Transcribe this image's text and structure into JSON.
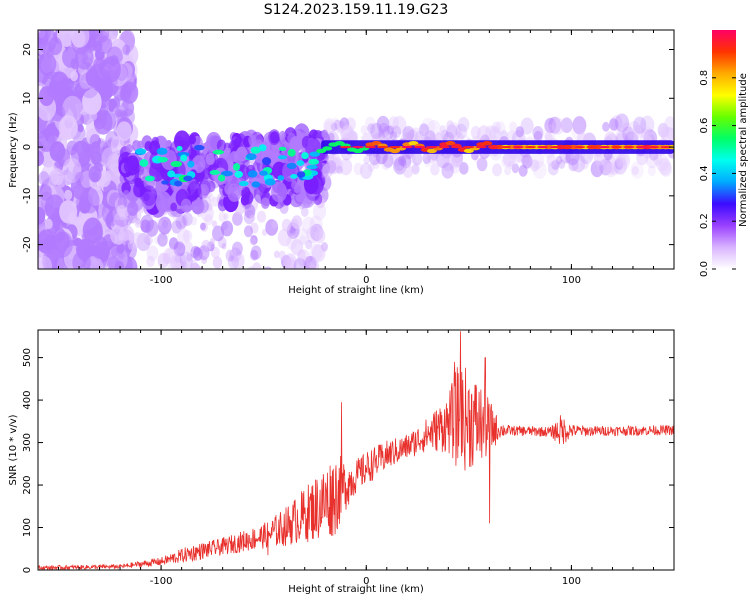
{
  "title": "S124.2023.159.11.19.G23",
  "chart_data": [
    {
      "type": "heatmap",
      "xlabel": "Height of straight line (km)",
      "ylabel": "Frequency (Hz)",
      "xlim": [
        -160,
        150
      ],
      "ylim": [
        -25,
        24
      ],
      "xticks": [
        -100,
        0,
        100
      ],
      "yticks": [
        -20,
        -10,
        0,
        10,
        20
      ],
      "ridge_frequency_hz": 0,
      "colorbar": {
        "label": "Normalized spectral amplitude",
        "range": [
          0.0,
          1.0
        ],
        "ticks": [
          "0.0",
          "0.2",
          "0.4",
          "0.6",
          "0.8"
        ],
        "colors": [
          "#ffffff",
          "#d9b3ff",
          "#9a40ff",
          "#3b0bff",
          "#00aaff",
          "#00ffee",
          "#00ff66",
          "#66ff00",
          "#ffff00",
          "#ffaa00",
          "#ff3300",
          "#ff0066"
        ]
      }
    },
    {
      "type": "line",
      "xlabel": "Height of straight line (km)",
      "ylabel": "SNR (10 * v/v)",
      "xlim": [
        -160,
        150
      ],
      "ylim": [
        0,
        565
      ],
      "xticks": [
        -100,
        0,
        100
      ],
      "yticks": [
        0,
        100,
        200,
        300,
        400,
        500
      ],
      "color": "#e8302c",
      "envelope": {
        "x": [
          -160,
          -120,
          -100,
          -85,
          -70,
          -50,
          -40,
          -30,
          -20,
          -15,
          -10,
          -5,
          0,
          10,
          20,
          30,
          40,
          45,
          50,
          55,
          60,
          65,
          70,
          80,
          90,
          95,
          100,
          110,
          120,
          130,
          140,
          150
        ],
        "mean": [
          5,
          8,
          20,
          40,
          55,
          80,
          100,
          130,
          160,
          180,
          200,
          220,
          240,
          270,
          290,
          320,
          345,
          360,
          355,
          345,
          335,
          330,
          328,
          327,
          325,
          328,
          328,
          327,
          328,
          328,
          329,
          329
        ],
        "amplitude": [
          5,
          5,
          10,
          20,
          20,
          30,
          45,
          65,
          90,
          100,
          60,
          40,
          40,
          35,
          30,
          40,
          70,
          130,
          120,
          100,
          70,
          20,
          12,
          12,
          12,
          40,
          15,
          12,
          12,
          12,
          12,
          12
        ]
      },
      "peaks": [
        {
          "x": 46,
          "y": 562
        },
        {
          "x": 58,
          "y": 500
        },
        {
          "x": 43,
          "y": 490
        },
        {
          "x": -12,
          "y": 395
        },
        {
          "x": 60,
          "y": 110
        },
        {
          "x": -48,
          "y": 35
        }
      ]
    }
  ]
}
